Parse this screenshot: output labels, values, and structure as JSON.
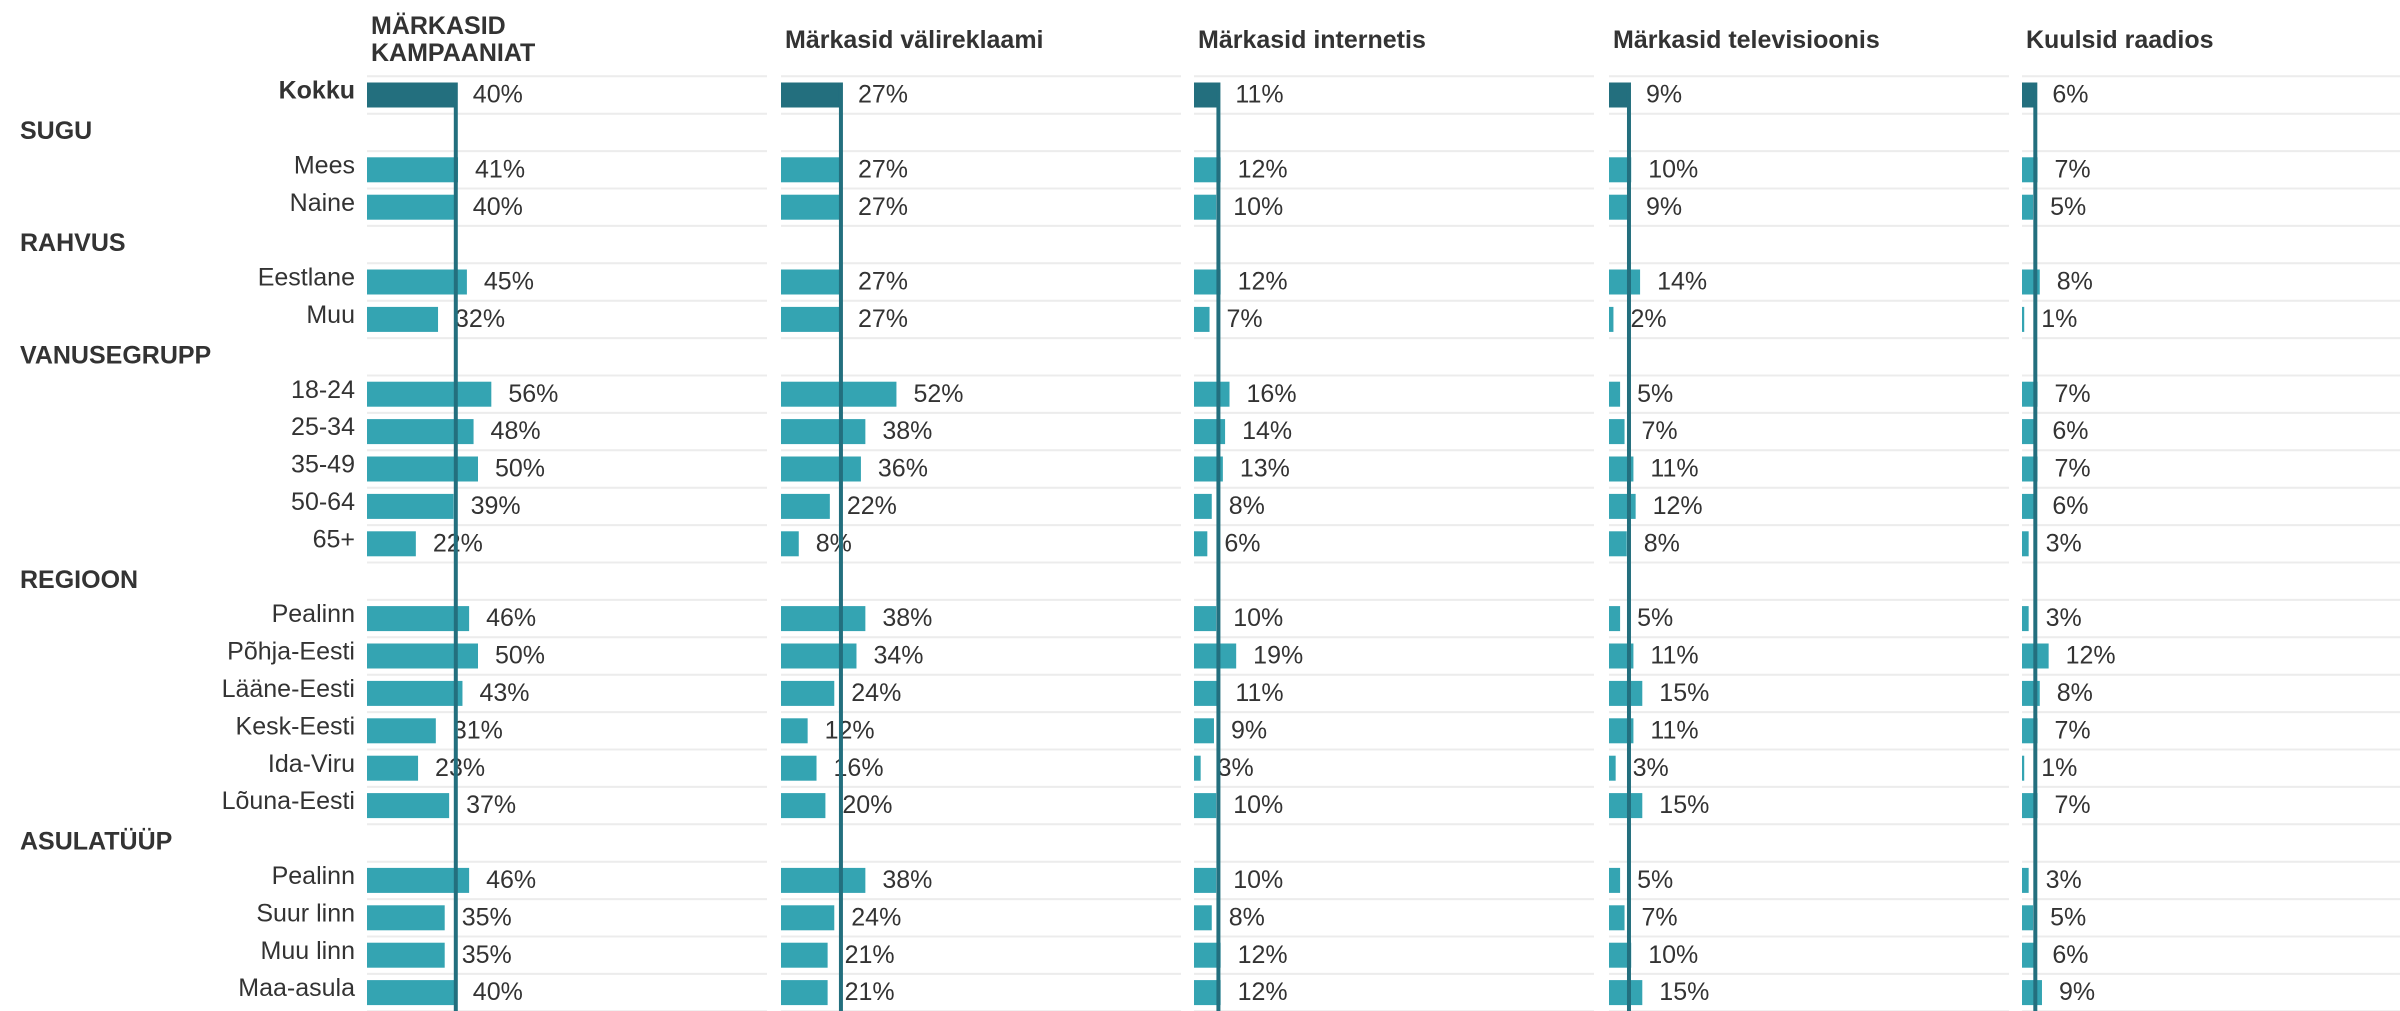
{
  "chart_data": {
    "type": "bar",
    "xlim": [
      0,
      100
    ],
    "groups": [
      "SUGU",
      "RAHVUS",
      "VANUSEGRUPP",
      "REGIOON",
      "ASULATÜÜP"
    ],
    "categories": [
      "Kokku",
      "SUGU",
      "Mees",
      "Naine",
      "RAHVUS",
      "Eestlane",
      "Muu",
      "VANUSEGRUPP",
      "18-24",
      "25-34",
      "35-49",
      "50-64",
      "65+",
      "REGIOON",
      "Pealinn",
      "Põhja-Eesti",
      "Lääne-Eesti",
      "Kesk-Eesti",
      "Ida-Viru",
      "Lõuna-Eesti",
      "ASULATÜÜP",
      "Pealinn",
      "Suur linn",
      "Muu linn",
      "Maa-asula"
    ],
    "total_color": "#236f7e",
    "series": [
      {
        "name": "MÄRKASID KAMPAANIAT",
        "color": "#34a4b2",
        "values": [
          40,
          null,
          41,
          40,
          null,
          45,
          32,
          null,
          56,
          48,
          50,
          39,
          22,
          null,
          46,
          50,
          43,
          31,
          23,
          37,
          null,
          46,
          35,
          35,
          40
        ],
        "value_labels": [
          "40%",
          null,
          "41%",
          "40%",
          null,
          "45%",
          "32%",
          null,
          "56%",
          "48%",
          "50%",
          "39%",
          "22%",
          null,
          "46%",
          "50%",
          "43%",
          "31%",
          "23%",
          "37%",
          null,
          "46%",
          "35%",
          "35%",
          "40%"
        ]
      },
      {
        "name": "Märkasid välireklaami",
        "color": "#34a4b2",
        "values": [
          27,
          null,
          27,
          27,
          null,
          27,
          27,
          null,
          52,
          38,
          36,
          22,
          8,
          null,
          38,
          34,
          24,
          12,
          16,
          20,
          null,
          38,
          24,
          21,
          21
        ],
        "value_labels": [
          "27%",
          null,
          "27%",
          "27%",
          null,
          "27%",
          "27%",
          null,
          "52%",
          "38%",
          "36%",
          "22%",
          "8%",
          null,
          "38%",
          "34%",
          "24%",
          "12%",
          "16%",
          "20%",
          null,
          "38%",
          "24%",
          "21%",
          "21%"
        ]
      },
      {
        "name": "Märkasid internetis",
        "color": "#34a4b2",
        "values": [
          11,
          null,
          12,
          10,
          null,
          12,
          7,
          null,
          16,
          14,
          13,
          8,
          6,
          null,
          10,
          19,
          11,
          9,
          3,
          10,
          null,
          10,
          8,
          12,
          12
        ],
        "value_labels": [
          "11%",
          null,
          "12%",
          "10%",
          null,
          "12%",
          "7%",
          null,
          "16%",
          "14%",
          "13%",
          "8%",
          "6%",
          null,
          "10%",
          "19%",
          "11%",
          "9%",
          "3%",
          "10%",
          null,
          "10%",
          "8%",
          "12%",
          "12%"
        ]
      },
      {
        "name": "Märkasid televisioonis",
        "color": "#34a4b2",
        "values": [
          9,
          null,
          10,
          9,
          null,
          14,
          2,
          null,
          5,
          7,
          11,
          12,
          8,
          null,
          5,
          11,
          15,
          11,
          3,
          15,
          null,
          5,
          7,
          10,
          15
        ],
        "value_labels": [
          "9%",
          null,
          "10%",
          "9%",
          null,
          "14%",
          "2%",
          null,
          "5%",
          "7%",
          "11%",
          "12%",
          "8%",
          null,
          "5%",
          "11%",
          "15%",
          "11%",
          "3%",
          "15%",
          null,
          "5%",
          "7%",
          "10%",
          "15%"
        ]
      },
      {
        "name": "Kuulsid raadios",
        "color": "#34a4b2",
        "values": [
          6,
          null,
          7,
          5,
          null,
          8,
          1,
          null,
          7,
          6,
          7,
          6,
          3,
          null,
          3,
          12,
          8,
          7,
          1,
          7,
          null,
          3,
          5,
          6,
          9
        ],
        "value_labels": [
          "6%",
          null,
          "7%",
          "5%",
          null,
          "8%",
          "1%",
          null,
          "7%",
          "6%",
          "7%",
          "6%",
          "3%",
          null,
          "3%",
          "12%",
          "8%",
          "7%",
          "1%",
          "7%",
          null,
          "3%",
          "5%",
          "6%",
          "9%"
        ]
      }
    ]
  }
}
